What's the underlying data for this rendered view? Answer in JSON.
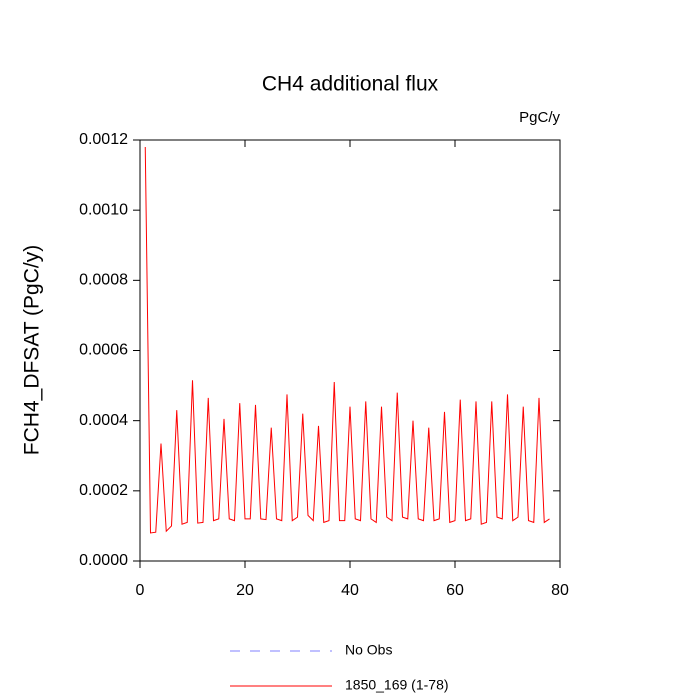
{
  "chart_data": {
    "type": "line",
    "title": "CH4 additional flux",
    "units": "PgC/y",
    "y_label": "FCH4_DFSAT  (PgC/y)",
    "x": [
      1,
      2,
      3,
      4,
      5,
      6,
      7,
      8,
      9,
      10,
      11,
      12,
      13,
      14,
      15,
      16,
      17,
      18,
      19,
      20,
      21,
      22,
      23,
      24,
      25,
      26,
      27,
      28,
      29,
      30,
      31,
      32,
      33,
      34,
      35,
      36,
      37,
      38,
      39,
      40,
      41,
      42,
      43,
      44,
      45,
      46,
      47,
      48,
      49,
      50,
      51,
      52,
      53,
      54,
      55,
      56,
      57,
      58,
      59,
      60,
      61,
      62,
      63,
      64,
      65,
      66,
      67,
      68,
      69,
      70,
      71,
      72,
      73,
      74,
      75,
      76,
      77,
      78
    ],
    "series": [
      {
        "name": "1850_169 (1-78)",
        "color": "#ff0000",
        "values": [
          0.00118,
          8e-05,
          8.2e-05,
          0.000335,
          8.5e-05,
          0.0001,
          0.00043,
          0.000105,
          0.00011,
          0.000515,
          0.000108,
          0.00011,
          0.000465,
          0.000115,
          0.00012,
          0.000405,
          0.00012,
          0.000115,
          0.00045,
          0.00012,
          0.00012,
          0.000445,
          0.00012,
          0.000118,
          0.00038,
          0.00012,
          0.000115,
          0.000475,
          0.000115,
          0.000125,
          0.00042,
          0.00013,
          0.000115,
          0.000385,
          0.00011,
          0.000115,
          0.00051,
          0.000115,
          0.000115,
          0.00044,
          0.00012,
          0.000115,
          0.000455,
          0.00012,
          0.00011,
          0.00044,
          0.000125,
          0.000115,
          0.00048,
          0.000125,
          0.00012,
          0.0004,
          0.00012,
          0.000115,
          0.00038,
          0.000115,
          0.00012,
          0.000425,
          0.00011,
          0.000115,
          0.00046,
          0.000115,
          0.00012,
          0.000455,
          0.000105,
          0.00011,
          0.000455,
          0.000125,
          0.00012,
          0.000475,
          0.000115,
          0.000125,
          0.00044,
          0.000115,
          0.00011,
          0.000465,
          0.00011,
          0.00012
        ]
      }
    ],
    "legend": [
      {
        "label": "No Obs",
        "color": "#8080ff",
        "dashed": true
      },
      {
        "label": "1850_169 (1-78)",
        "color": "#ff0000",
        "dashed": false
      }
    ],
    "xlim": [
      0,
      80
    ],
    "xticks": [
      0,
      20,
      40,
      60,
      80
    ],
    "ylim": [
      0,
      0.0012
    ],
    "yticks": [
      {
        "value": 0,
        "label": "0.0000"
      },
      {
        "value": 0.0002,
        "label": "0.0002"
      },
      {
        "value": 0.0004,
        "label": "0.0004"
      },
      {
        "value": 0.0006,
        "label": "0.0006"
      },
      {
        "value": 0.0008,
        "label": "0.0008"
      },
      {
        "value": 0.001,
        "label": "0.0010"
      },
      {
        "value": 0.0012,
        "label": "0.0012"
      }
    ]
  }
}
